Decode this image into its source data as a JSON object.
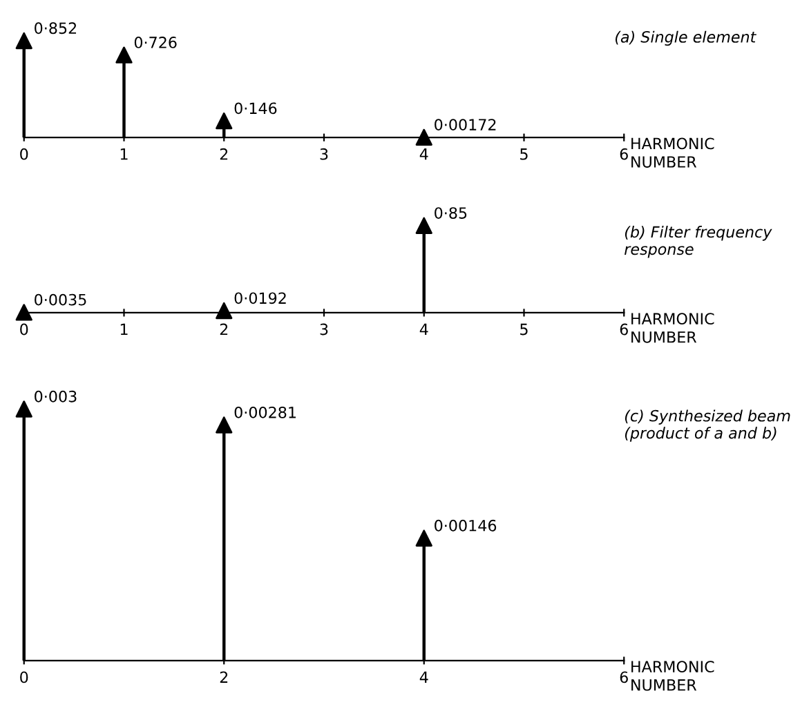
{
  "chart_data": [
    {
      "type": "lollipop",
      "title": "(a) Single element",
      "xlabel": "HARMONIC NUMBER",
      "x": [
        0,
        1,
        2,
        4
      ],
      "values": [
        0.852,
        0.726,
        0.146,
        0.00172
      ],
      "value_labels": [
        "0·852",
        "0·726",
        "0·146",
        "0·00172"
      ],
      "xlim": [
        0,
        6
      ],
      "xticks": [
        0,
        1,
        2,
        3,
        4,
        5,
        6
      ],
      "color": "#000000",
      "marker": "triangle"
    },
    {
      "type": "lollipop",
      "title": "(b) Filter frequency response",
      "xlabel": "HARMONIC NUMBER",
      "x": [
        0,
        2,
        4
      ],
      "values": [
        0.0035,
        0.0192,
        0.85
      ],
      "value_labels": [
        "0·0035",
        "0·0192",
        "0·85"
      ],
      "xlim": [
        0,
        6
      ],
      "xticks": [
        0,
        1,
        2,
        3,
        4,
        5,
        6
      ],
      "color": "#000000",
      "marker": "triangle"
    },
    {
      "type": "lollipop",
      "title": "(c) Synthesized beam (product of a and b)",
      "xlabel": "HARMONIC NUMBER",
      "x": [
        0,
        2,
        4
      ],
      "values": [
        0.003,
        0.00281,
        0.00146
      ],
      "value_labels": [
        "0·003",
        "0·00281",
        "0·00146"
      ],
      "xlim": [
        0,
        6
      ],
      "xticks": [
        0,
        2,
        4,
        6
      ],
      "color": "#000000",
      "marker": "triangle"
    }
  ]
}
